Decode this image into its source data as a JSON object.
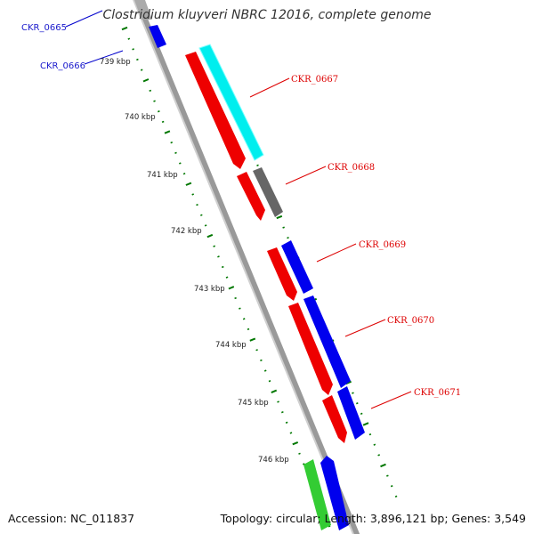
{
  "title": "Clostridium kluyveri NBRC 12016, complete genome",
  "footer": {
    "accession": "Accession: NC_011837",
    "summary": "Topology: circular; Length: 3,896,121 bp; Genes: 3,549"
  },
  "scale_labels": [
    "739 kbp",
    "740 kbp",
    "741 kbp",
    "742 kbp",
    "743 kbp",
    "744 kbp",
    "745 kbp",
    "746 kbp"
  ],
  "gene_labels": [
    {
      "id": "CKR_0665",
      "color": "#0000cc"
    },
    {
      "id": "CKR_0666",
      "color": "#0000cc"
    },
    {
      "id": "CKR_0667",
      "color": "#dd0000"
    },
    {
      "id": "CKR_0668",
      "color": "#dd0000"
    },
    {
      "id": "CKR_0669",
      "color": "#dd0000"
    },
    {
      "id": "CKR_0670",
      "color": "#dd0000"
    },
    {
      "id": "CKR_0671",
      "color": "#dd0000"
    }
  ],
  "colors": {
    "backbone": "#999999",
    "forward_cds": "#0000ee",
    "reverse_cds": "#ee0000",
    "cyan_feature": "#00eeee",
    "gray_feature": "#666666",
    "green_feature": "#33cc33",
    "tick": "#007700"
  }
}
